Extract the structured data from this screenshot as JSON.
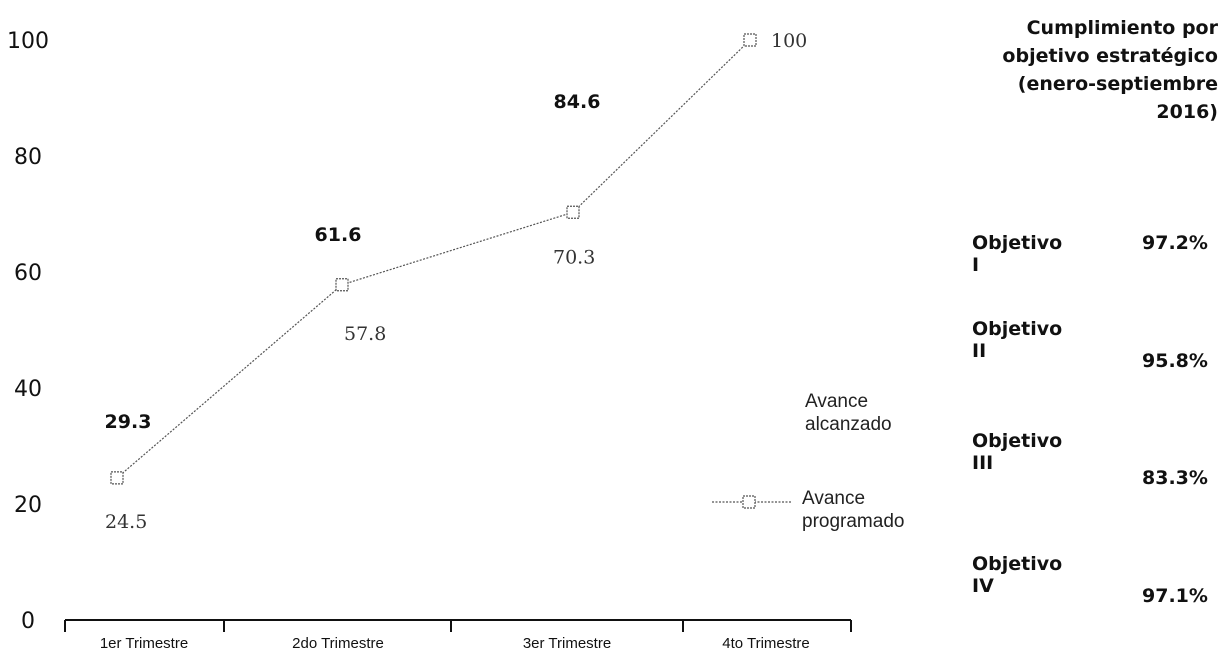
{
  "chart_data": {
    "type": "line",
    "categories": [
      "1er Trimestre",
      "2do Trimestre",
      "3er Trimestre",
      "4to Trimestre"
    ],
    "ylim": [
      0,
      100
    ],
    "yticks": [
      0,
      20,
      40,
      60,
      80,
      100
    ],
    "series": [
      {
        "name": "Avance alcanzado",
        "values": [
          29.3,
          61.6,
          84.6,
          null
        ],
        "color": "#111111"
      },
      {
        "name": "Avance programado",
        "values": [
          24.5,
          57.8,
          70.3,
          100
        ],
        "color": "#555555"
      }
    ],
    "legend": {
      "placement": "right",
      "items": [
        "Avance alcanzado",
        "Avance programado"
      ]
    },
    "grid": false
  },
  "side_panel": {
    "title_lines": [
      "Cumplimiento por",
      "objetivo estratégico",
      "(enero-septiembre",
      "2016)"
    ],
    "objectives": [
      {
        "name": "Objetivo I",
        "value": "97.2%"
      },
      {
        "name": "Objetivo II",
        "value": "95.8%"
      },
      {
        "name": "Objetivo III",
        "value": "83.3%"
      },
      {
        "name": "Objetivo IV",
        "value": "97.1%"
      }
    ]
  }
}
